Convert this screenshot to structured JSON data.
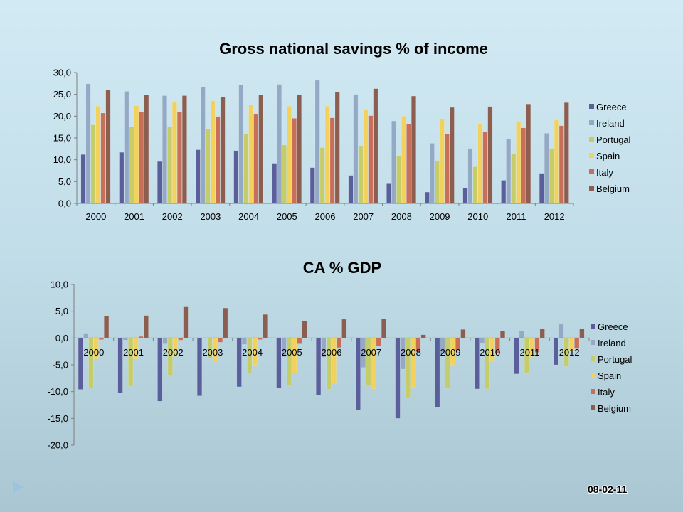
{
  "colors": {
    "Greece": "#5a5e9a",
    "Ireland": "#93a9c6",
    "Portugal": "#c5cc6a",
    "Spain": "#f2d15c",
    "Italy": "#c86f5a",
    "Belgium": "#8c5e50"
  },
  "footer": {
    "date": "08-02-11"
  },
  "chart_data": [
    {
      "type": "bar",
      "title": "Gross national savings % of income",
      "categories": [
        "2000",
        "2001",
        "2002",
        "2003",
        "2004",
        "2005",
        "2006",
        "2007",
        "2008",
        "2009",
        "2010",
        "2011",
        "2012"
      ],
      "ylim": [
        0,
        30
      ],
      "yticks": [
        "0,0",
        "5,0",
        "10,0",
        "15,0",
        "20,0",
        "25,0",
        "30,0"
      ],
      "legend_position": "right",
      "grid": false,
      "series": [
        {
          "name": "Greece",
          "values": [
            11.2,
            11.7,
            9.6,
            12.3,
            12.1,
            9.2,
            8.2,
            6.4,
            4.5,
            2.6,
            3.5,
            5.3,
            6.9
          ]
        },
        {
          "name": "Ireland",
          "values": [
            27.4,
            25.7,
            24.7,
            26.7,
            27.1,
            27.3,
            28.2,
            25.0,
            18.9,
            13.8,
            12.6,
            14.7,
            16.1
          ]
        },
        {
          "name": "Portugal",
          "values": [
            18.0,
            17.6,
            17.5,
            17.0,
            15.9,
            13.4,
            12.8,
            13.2,
            10.9,
            9.7,
            8.4,
            11.3,
            12.6
          ]
        },
        {
          "name": "Spain",
          "values": [
            22.3,
            22.4,
            23.3,
            23.5,
            22.6,
            22.3,
            22.3,
            21.4,
            20.0,
            19.3,
            18.3,
            18.7,
            19.1
          ]
        },
        {
          "name": "Italy",
          "values": [
            20.7,
            21.0,
            20.9,
            19.9,
            20.4,
            19.5,
            19.6,
            20.1,
            18.2,
            15.9,
            16.4,
            17.3,
            17.8
          ]
        },
        {
          "name": "Belgium",
          "values": [
            26.0,
            24.9,
            24.7,
            24.4,
            24.9,
            24.9,
            25.5,
            26.3,
            24.6,
            22.0,
            22.2,
            22.8,
            23.1
          ]
        }
      ]
    },
    {
      "type": "bar",
      "title": "CA % GDP",
      "categories": [
        "2000",
        "2001",
        "2002",
        "2003",
        "2004",
        "2005",
        "2006",
        "2007",
        "2008",
        "2009",
        "2010",
        "2011",
        "2012"
      ],
      "ylim": [
        -20,
        10
      ],
      "yticks": [
        "-20,0",
        "-15,0",
        "-10,0",
        "-5,0",
        "0,0",
        "5,0",
        "10,0"
      ],
      "legend_position": "right",
      "grid": false,
      "series": [
        {
          "name": "Greece",
          "values": [
            -9.6,
            -10.3,
            -11.8,
            -10.8,
            -9.1,
            -9.4,
            -10.6,
            -13.4,
            -15.0,
            -12.9,
            -9.5,
            -6.7,
            -5.0
          ]
        },
        {
          "name": "Ireland",
          "values": [
            0.9,
            -0.4,
            -1.1,
            -0.1,
            -1.2,
            -3.5,
            -3.6,
            -5.5,
            -5.8,
            -3.0,
            -1.0,
            1.4,
            2.6
          ]
        },
        {
          "name": "Portugal",
          "values": [
            -9.3,
            -9.0,
            -6.9,
            -3.8,
            -6.7,
            -8.8,
            -9.6,
            -8.8,
            -11.1,
            -9.4,
            -9.5,
            -6.6,
            -5.3
          ]
        },
        {
          "name": "Spain",
          "values": [
            -3.9,
            -3.9,
            -3.4,
            -4.3,
            -5.1,
            -6.5,
            -8.4,
            -9.5,
            -9.2,
            -5.0,
            -4.2,
            -3.5,
            -2.6
          ]
        },
        {
          "name": "Italy",
          "values": [
            -0.3,
            0.3,
            -0.4,
            -0.8,
            -0.3,
            -1.1,
            -1.8,
            -1.5,
            -2.6,
            -2.3,
            -2.8,
            -2.7,
            -2.0
          ]
        },
        {
          "name": "Belgium",
          "values": [
            4.1,
            4.2,
            5.8,
            5.6,
            4.4,
            3.2,
            3.5,
            3.6,
            0.6,
            1.6,
            1.3,
            1.7,
            1.7
          ]
        }
      ]
    }
  ]
}
